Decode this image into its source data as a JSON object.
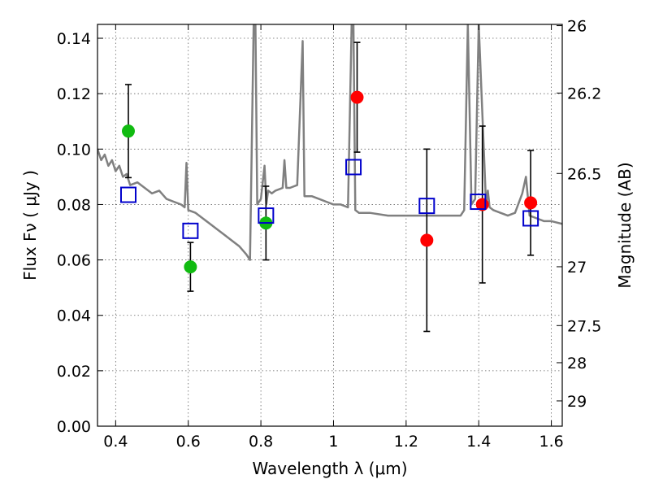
{
  "chart_data": {
    "type": "scatter",
    "title": "",
    "xlabel": "Wavelength  λ (μm)",
    "ylabel": "Flux  Fν  ( μJy )",
    "ylabel_right": "Magnitude (AB)",
    "xlim": [
      0.35,
      1.63
    ],
    "ylim": [
      0.0,
      0.145
    ],
    "grid": true,
    "x_ticks": [
      0.4,
      0.6,
      0.8,
      1.0,
      1.2,
      1.4,
      1.6
    ],
    "x_tick_labels": [
      "0.4",
      "0.6",
      "0.8",
      "1",
      "1.2",
      "1.4",
      "1.6"
    ],
    "y_ticks": [
      0.0,
      0.02,
      0.04,
      0.06,
      0.08,
      0.1,
      0.12,
      0.14
    ],
    "y_tick_labels": [
      "0.00",
      "0.02",
      "0.04",
      "0.06",
      "0.08",
      "0.10",
      "0.12",
      "0.14"
    ],
    "right_ticks": [
      {
        "mag": 26,
        "label": "26"
      },
      {
        "mag": 26.2,
        "label": "26.2"
      },
      {
        "mag": 26.5,
        "label": "26.5"
      },
      {
        "mag": 27,
        "label": "27"
      },
      {
        "mag": 27.5,
        "label": "27.5"
      },
      {
        "mag": 28,
        "label": "28"
      },
      {
        "mag": 29,
        "label": "29"
      }
    ],
    "series": [
      {
        "marker": "circle",
        "color": "#11bb11",
        "points": [
          {
            "x": 0.435,
            "y": 0.1065,
            "err": 0.0168
          },
          {
            "x": 0.606,
            "y": 0.0575,
            "err": 0.0088
          },
          {
            "x": 0.814,
            "y": 0.0733,
            "err": 0.0133
          }
        ]
      },
      {
        "marker": "circle",
        "color": "#ff0000",
        "points": [
          {
            "x": 1.065,
            "y": 0.1187,
            "err": 0.0198
          },
          {
            "x": 1.257,
            "y": 0.0671,
            "err": 0.0329
          },
          {
            "x": 1.41,
            "y": 0.08,
            "err": 0.0283
          },
          {
            "x": 1.543,
            "y": 0.0806,
            "err": 0.0189
          }
        ]
      },
      {
        "marker": "open-square",
        "color": "#0000cc",
        "points": [
          {
            "x": 0.435,
            "y": 0.0835
          },
          {
            "x": 0.606,
            "y": 0.0705
          },
          {
            "x": 0.814,
            "y": 0.076
          },
          {
            "x": 1.055,
            "y": 0.0935
          },
          {
            "x": 1.257,
            "y": 0.0795
          },
          {
            "x": 1.398,
            "y": 0.081
          },
          {
            "x": 1.543,
            "y": 0.075
          }
        ]
      }
    ],
    "model_spectrum": {
      "color": "#808080",
      "x": [
        0.35,
        0.36,
        0.37,
        0.38,
        0.39,
        0.4,
        0.41,
        0.42,
        0.43,
        0.44,
        0.46,
        0.48,
        0.5,
        0.52,
        0.54,
        0.56,
        0.58,
        0.59,
        0.595,
        0.6,
        0.62,
        0.64,
        0.66,
        0.68,
        0.7,
        0.72,
        0.74,
        0.76,
        0.77,
        0.78,
        0.785,
        0.79,
        0.8,
        0.81,
        0.815,
        0.82,
        0.83,
        0.84,
        0.86,
        0.865,
        0.87,
        0.88,
        0.9,
        0.915,
        0.92,
        0.94,
        0.96,
        0.98,
        1.0,
        1.02,
        1.04,
        1.05,
        1.055,
        1.06,
        1.07,
        1.08,
        1.1,
        1.15,
        1.2,
        1.25,
        1.3,
        1.35,
        1.36,
        1.37,
        1.38,
        1.39,
        1.4,
        1.42,
        1.425,
        1.43,
        1.44,
        1.46,
        1.48,
        1.5,
        1.52,
        1.53,
        1.54,
        1.56,
        1.58,
        1.6,
        1.63
      ],
      "y": [
        0.1,
        0.096,
        0.098,
        0.094,
        0.096,
        0.092,
        0.094,
        0.09,
        0.091,
        0.087,
        0.088,
        0.086,
        0.084,
        0.085,
        0.082,
        0.081,
        0.08,
        0.079,
        0.095,
        0.078,
        0.077,
        0.075,
        0.073,
        0.071,
        0.069,
        0.067,
        0.065,
        0.062,
        0.06,
        0.145,
        0.145,
        0.08,
        0.082,
        0.094,
        0.08,
        0.085,
        0.084,
        0.085,
        0.086,
        0.096,
        0.086,
        0.086,
        0.087,
        0.139,
        0.083,
        0.083,
        0.082,
        0.081,
        0.08,
        0.08,
        0.079,
        0.145,
        0.145,
        0.078,
        0.077,
        0.077,
        0.077,
        0.076,
        0.076,
        0.076,
        0.076,
        0.076,
        0.078,
        0.145,
        0.08,
        0.082,
        0.145,
        0.08,
        0.085,
        0.079,
        0.078,
        0.077,
        0.076,
        0.077,
        0.084,
        0.09,
        0.076,
        0.075,
        0.074,
        0.074,
        0.073
      ]
    }
  }
}
